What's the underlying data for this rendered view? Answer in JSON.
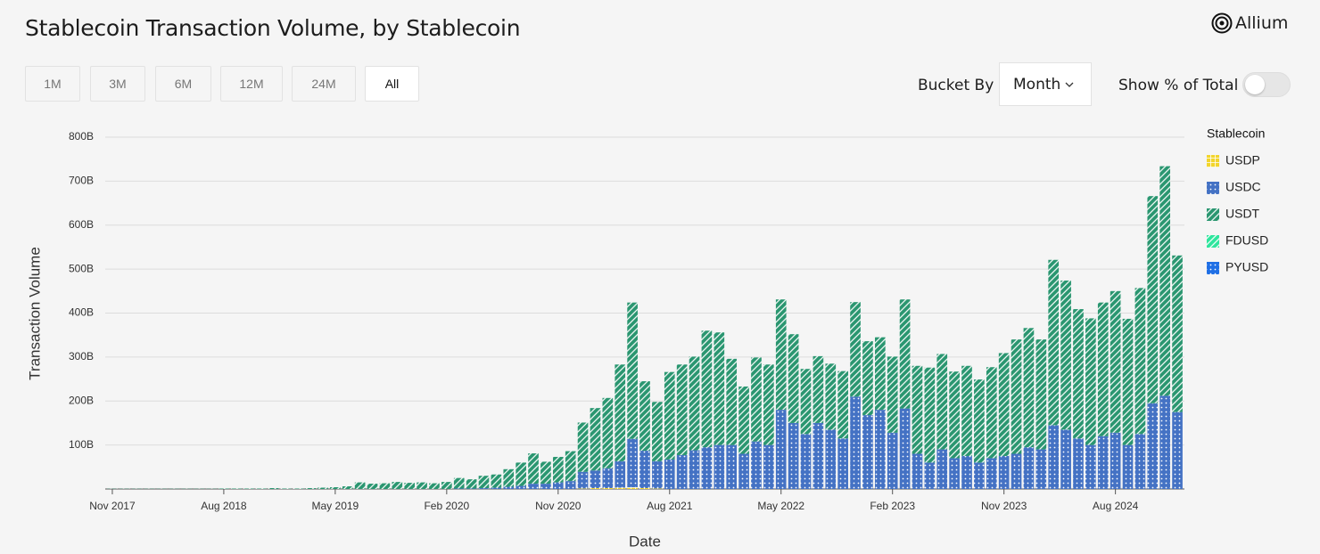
{
  "header": {
    "title": "Stablecoin Transaction Volume, by Stablecoin",
    "logo": "Allium"
  },
  "controls": {
    "ranges": [
      "1M",
      "3M",
      "6M",
      "12M",
      "24M",
      "All"
    ],
    "bucket_label": "Bucket By",
    "bucket_value": "Month",
    "percent_label": "Show % of Total"
  },
  "chart_data": {
    "type": "stacked_bar",
    "y_label": "Transaction Volume",
    "x_label": "Date",
    "legend_title": "Stablecoin",
    "legend": "right",
    "grid": true,
    "ylim": [
      0,
      800
    ],
    "yticks": [
      {
        "value": 100,
        "label": "100B"
      },
      {
        "value": 200,
        "label": "200B"
      },
      {
        "value": 300,
        "label": "300B"
      },
      {
        "value": 400,
        "label": "400B"
      },
      {
        "value": 500,
        "label": "500B"
      },
      {
        "value": 600,
        "label": "600B"
      },
      {
        "value": 700,
        "label": "700B"
      },
      {
        "value": 800,
        "label": "800B"
      }
    ],
    "categories": [
      "Nov 2017",
      null,
      null,
      null,
      null,
      null,
      null,
      null,
      null,
      "Aug 2018",
      null,
      null,
      null,
      null,
      null,
      null,
      null,
      null,
      "May 2019",
      null,
      null,
      null,
      null,
      null,
      null,
      null,
      null,
      "Feb 2020",
      null,
      null,
      null,
      null,
      null,
      null,
      null,
      null,
      "Nov 2020",
      null,
      null,
      null,
      null,
      null,
      null,
      null,
      null,
      "Aug 2021",
      null,
      null,
      null,
      null,
      null,
      null,
      null,
      null,
      "May 2022",
      null,
      null,
      null,
      null,
      null,
      null,
      null,
      null,
      "Feb 2023",
      null,
      null,
      null,
      null,
      null,
      null,
      null,
      null,
      "Nov 2023",
      null,
      null,
      null,
      null,
      null,
      null,
      null,
      null,
      "Aug 2024",
      null,
      null,
      null,
      null,
      null
    ],
    "series": [
      {
        "name": "USDP",
        "color": "#f2d52c",
        "pattern": "grid",
        "values": [
          0,
          0,
          0,
          0,
          0,
          0,
          0,
          0,
          0,
          0,
          0,
          0,
          0,
          0,
          0,
          0,
          0,
          0,
          0,
          0,
          0,
          0,
          0,
          0,
          0,
          0,
          0,
          0,
          0,
          0,
          0,
          0,
          0,
          0,
          0,
          0,
          0,
          0,
          1,
          2,
          2,
          3,
          4,
          2,
          1,
          0,
          0,
          0,
          0,
          0,
          0,
          0,
          0,
          0,
          0,
          0,
          0,
          0,
          0,
          0,
          0,
          0,
          0,
          0,
          0,
          0,
          0,
          0,
          0,
          0,
          0,
          0,
          0,
          0,
          0,
          0,
          0,
          0,
          0,
          0,
          0,
          0,
          0,
          0,
          0,
          0,
          0
        ]
      },
      {
        "name": "USDC",
        "color": "#4472c4",
        "pattern": "dots",
        "values": [
          0,
          0,
          0,
          0,
          0,
          0,
          0,
          0,
          0,
          0,
          0,
          0,
          0,
          0,
          0,
          0,
          0,
          0,
          0,
          0,
          0,
          0,
          0,
          0,
          0,
          0,
          0,
          0,
          1,
          1,
          2,
          3,
          5,
          7,
          12,
          12,
          15,
          18,
          38,
          40,
          45,
          60,
          110,
          85,
          62,
          67,
          77,
          88,
          95,
          100,
          100,
          80,
          108,
          100,
          180,
          150,
          125,
          150,
          135,
          115,
          210,
          168,
          180,
          128,
          183,
          80,
          60,
          90,
          70,
          75,
          60,
          70,
          75,
          80,
          95,
          90,
          145,
          135,
          115,
          100,
          120,
          128,
          100,
          125,
          195,
          212,
          175
        ]
      },
      {
        "name": "USDT",
        "color": "#2a9670",
        "pattern": "stripes",
        "values": [
          0.5,
          0.5,
          0.5,
          0.5,
          0.5,
          0.5,
          0.5,
          0.5,
          0.5,
          1,
          1,
          1,
          1,
          2,
          1,
          1,
          2,
          3,
          4,
          6,
          15,
          12,
          13,
          16,
          14,
          15,
          13,
          16,
          24,
          21,
          28,
          30,
          40,
          53,
          69,
          50,
          58,
          68,
          112,
          142,
          160,
          220,
          310,
          158,
          135,
          199,
          206,
          213,
          265,
          256,
          196,
          153,
          191,
          183,
          251,
          202,
          148,
          152,
          150,
          153,
          215,
          168,
          165,
          173,
          248,
          200,
          216,
          217,
          197,
          205,
          189,
          207,
          234,
          260,
          271,
          250,
          376,
          339,
          294,
          288,
          304,
          322,
          287,
          332,
          471,
          522,
          356
        ]
      },
      {
        "name": "FDUSD",
        "color": "#2ee59d",
        "pattern": "stripes",
        "values": [
          0,
          0,
          0,
          0,
          0,
          0,
          0,
          0,
          0,
          0,
          0,
          0,
          0,
          0,
          0,
          0,
          0,
          0,
          0,
          0,
          0,
          0,
          0,
          0,
          0,
          0,
          0,
          0,
          0,
          0,
          0,
          0,
          0,
          0,
          0,
          0,
          0,
          0,
          0,
          0,
          0,
          0,
          0,
          0,
          0,
          0,
          0,
          0,
          0,
          0,
          0,
          0,
          0,
          0,
          0,
          0,
          0,
          0,
          0,
          0,
          0,
          0,
          0,
          0,
          0,
          0,
          0,
          0,
          0,
          0,
          0,
          0,
          0,
          0,
          0,
          0,
          0,
          0,
          0,
          0,
          0,
          0,
          0,
          0,
          0,
          0,
          0
        ]
      },
      {
        "name": "PYUSD",
        "color": "#1f6fe5",
        "pattern": "dots",
        "values": [
          0,
          0,
          0,
          0,
          0,
          0,
          0,
          0,
          0,
          0,
          0,
          0,
          0,
          0,
          0,
          0,
          0,
          0,
          0,
          0,
          0,
          0,
          0,
          0,
          0,
          0,
          0,
          0,
          0,
          0,
          0,
          0,
          0,
          0,
          0,
          0,
          0,
          0,
          0,
          0,
          0,
          0,
          0,
          0,
          0,
          0,
          0,
          0,
          0,
          0,
          0,
          0,
          0,
          0,
          0,
          0,
          0,
          0,
          0,
          0,
          0,
          0,
          0,
          0,
          0,
          0,
          0,
          0,
          0,
          0,
          0,
          0,
          0,
          0,
          0,
          0,
          0,
          0,
          0,
          0,
          0,
          0,
          0,
          0,
          0,
          0,
          0
        ]
      }
    ]
  }
}
